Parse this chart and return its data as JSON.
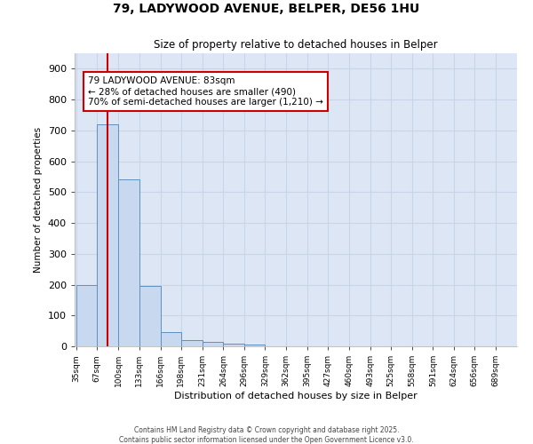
{
  "title_line1": "79, LADYWOOD AVENUE, BELPER, DE56 1HU",
  "title_line2": "Size of property relative to detached houses in Belper",
  "xlabel": "Distribution of detached houses by size in Belper",
  "ylabel": "Number of detached properties",
  "bar_edges": [
    35,
    67,
    100,
    133,
    166,
    198,
    231,
    264,
    296,
    329,
    362,
    395,
    427,
    460,
    493,
    525,
    558,
    591,
    624,
    656,
    689
  ],
  "bar_heights": [
    200,
    720,
    540,
    195,
    47,
    20,
    15,
    10,
    5,
    0,
    0,
    0,
    0,
    0,
    0,
    0,
    0,
    0,
    0,
    0
  ],
  "bar_color": "#c8d8ee",
  "bar_edge_color": "#6090c0",
  "vline_x": 83,
  "vline_color": "#cc0000",
  "annotation_text": "79 LADYWOOD AVENUE: 83sqm\n← 28% of detached houses are smaller (490)\n70% of semi-detached houses are larger (1,210) →",
  "annotation_box_color": "#ffffff",
  "annotation_box_edge_color": "#cc0000",
  "ylim": [
    0,
    950
  ],
  "yticks": [
    0,
    100,
    200,
    300,
    400,
    500,
    600,
    700,
    800,
    900
  ],
  "grid_color": "#c8d4e8",
  "background_color": "#dde6f4",
  "footer_line1": "Contains HM Land Registry data © Crown copyright and database right 2025.",
  "footer_line2": "Contains public sector information licensed under the Open Government Licence v3.0.",
  "tick_labels": [
    "35sqm",
    "67sqm",
    "100sqm",
    "133sqm",
    "166sqm",
    "198sqm",
    "231sqm",
    "264sqm",
    "296sqm",
    "329sqm",
    "362sqm",
    "395sqm",
    "427sqm",
    "460sqm",
    "493sqm",
    "525sqm",
    "558sqm",
    "591sqm",
    "624sqm",
    "656sqm",
    "689sqm"
  ]
}
